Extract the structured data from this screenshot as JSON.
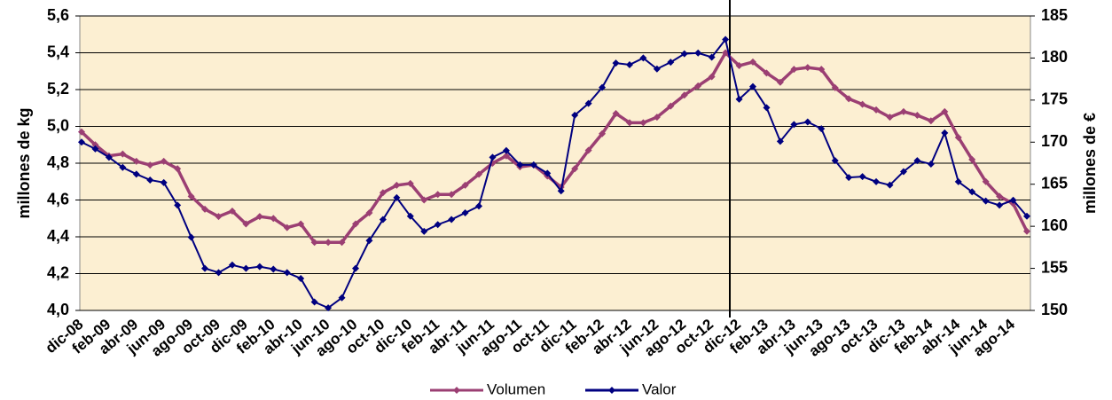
{
  "chart_data": {
    "type": "line",
    "categories": [
      "dic-08",
      null,
      "feb-09",
      null,
      "abr-09",
      null,
      "jun-09",
      null,
      "ago-09",
      null,
      "oct-09",
      null,
      "dic-09",
      null,
      "feb-10",
      null,
      "abr-10",
      null,
      "jun-10",
      null,
      "ago-10",
      null,
      "oct-10",
      null,
      "dic-10",
      null,
      "feb-11",
      null,
      "abr-11",
      null,
      "jun-11",
      null,
      "ago-11",
      null,
      "oct-11",
      null,
      "dic-11",
      null,
      "feb-12",
      null,
      "abr-12",
      null,
      "jun-12",
      null,
      "ago-12",
      null,
      "oct-12",
      null,
      "dic-12",
      null,
      "feb-13",
      null,
      "abr-13",
      null,
      "jun-13",
      null,
      "ago-13",
      null,
      "oct-13",
      null,
      "dic-13",
      null,
      "feb-14",
      null,
      "abr-14",
      null,
      "jun-14",
      null,
      "ago-14",
      null
    ],
    "series": [
      {
        "name": "Volumen",
        "color": "#9b3f73",
        "values": [
          4.97,
          4.9,
          4.84,
          4.85,
          4.81,
          4.79,
          4.81,
          4.77,
          4.62,
          4.55,
          4.51,
          4.54,
          4.47,
          4.51,
          4.5,
          4.45,
          4.47,
          4.37,
          4.37,
          4.37,
          4.47,
          4.53,
          4.64,
          4.68,
          4.69,
          4.6,
          4.63,
          4.63,
          4.68,
          4.74,
          4.8,
          4.84,
          4.78,
          4.79,
          4.73,
          4.67,
          4.77,
          4.87,
          4.96,
          5.07,
          5.02,
          5.02,
          5.05,
          5.11,
          5.17,
          5.22,
          5.27,
          5.4,
          5.33,
          5.35,
          5.29,
          5.24,
          5.31,
          5.32,
          5.31,
          5.21,
          5.15,
          5.12,
          5.09,
          5.05,
          5.08,
          5.06,
          5.03,
          5.08,
          4.94,
          4.82,
          4.7,
          4.62,
          4.58,
          4.43
        ]
      },
      {
        "name": "Valor",
        "color": "#000080",
        "axis": "y2",
        "values": [
          170,
          169.2,
          168.2,
          167,
          166.2,
          165.5,
          165.2,
          162.5,
          158.7,
          155,
          154.5,
          155.4,
          155,
          155.2,
          154.9,
          154.5,
          153.8,
          151,
          150.3,
          151.5,
          155,
          158.3,
          160.8,
          163.4,
          161.2,
          159.4,
          160.2,
          160.8,
          161.6,
          162.4,
          168.2,
          169,
          167.3,
          167.3,
          166.3,
          164.2,
          173.2,
          174.6,
          176.5,
          179.4,
          179.2,
          180,
          178.7,
          179.5,
          180.5,
          180.6,
          180.1,
          182.2,
          175.1,
          176.6,
          174.1,
          170.1,
          172.1,
          172.4,
          171.6,
          167.8,
          165.8,
          165.9,
          165.3,
          164.9,
          166.5,
          167.8,
          167.4,
          171.1,
          165.3,
          164.1,
          163.0,
          162.5,
          163.1,
          161.2
        ]
      }
    ],
    "ylabel": "millones de kg",
    "y2label": "millones de €",
    "ylim": [
      4.0,
      5.6
    ],
    "yticks": [
      {
        "value": 4.0,
        "label": "4,0"
      },
      {
        "value": 4.2,
        "label": "4,2"
      },
      {
        "value": 4.4,
        "label": "4,4"
      },
      {
        "value": 4.6,
        "label": "4,6"
      },
      {
        "value": 4.8,
        "label": "4,8"
      },
      {
        "value": 5.0,
        "label": "5,0"
      },
      {
        "value": 5.2,
        "label": "5,2"
      },
      {
        "value": 5.4,
        "label": "5,4"
      },
      {
        "value": 5.6,
        "label": "5,6"
      }
    ],
    "y2lim": [
      150,
      185
    ],
    "y2ticks": [
      150,
      155,
      160,
      165,
      170,
      175,
      180,
      185
    ],
    "grid": true,
    "legend": "bottom"
  }
}
